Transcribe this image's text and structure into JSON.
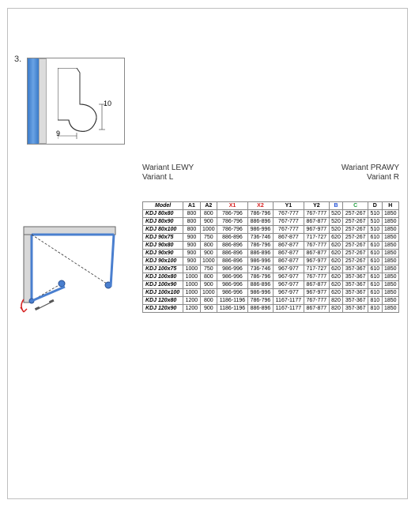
{
  "step_number": "3.",
  "profile": {
    "dim_horizontal": "9",
    "dim_vertical": "10"
  },
  "variant_left": {
    "line1": "Wariant LEWY",
    "line2": "Variant L"
  },
  "variant_right": {
    "line1": "Wariant PRAWY",
    "line2": "Variant R"
  },
  "table": {
    "columns": [
      {
        "label": "Model",
        "class": "model-h"
      },
      {
        "label": "A1"
      },
      {
        "label": "A2"
      },
      {
        "label": "X1",
        "class": "red"
      },
      {
        "label": "X2",
        "class": "red"
      },
      {
        "label": "Y1"
      },
      {
        "label": "Y2"
      },
      {
        "label": "B",
        "class": "blue"
      },
      {
        "label": "C",
        "class": "green"
      },
      {
        "label": "D"
      },
      {
        "label": "H"
      }
    ],
    "rows": [
      [
        "KDJ 80x80",
        "800",
        "800",
        "786-796",
        "786-796",
        "767-777",
        "767-777",
        "520",
        "257-267",
        "510",
        "1850"
      ],
      [
        "KDJ 80x90",
        "800",
        "900",
        "786-796",
        "886-896",
        "767-777",
        "867-877",
        "520",
        "257-267",
        "510",
        "1850"
      ],
      [
        "KDJ 80x100",
        "800",
        "1000",
        "786-796",
        "986-996",
        "767-777",
        "967-977",
        "520",
        "257-267",
        "510",
        "1850"
      ],
      [
        "KDJ 90x75",
        "900",
        "750",
        "886-896",
        "736-746",
        "867-877",
        "717-727",
        "620",
        "257-267",
        "610",
        "1850"
      ],
      [
        "KDJ 90x80",
        "900",
        "800",
        "886-896",
        "786-796",
        "867-877",
        "767-777",
        "620",
        "257-267",
        "610",
        "1850"
      ],
      [
        "KDJ 90x90",
        "900",
        "900",
        "886-896",
        "886-896",
        "867-877",
        "867-877",
        "620",
        "257-267",
        "610",
        "1850"
      ],
      [
        "KDJ 90x100",
        "900",
        "1000",
        "886-896",
        "986-996",
        "867-877",
        "967-977",
        "620",
        "257-267",
        "610",
        "1850"
      ],
      [
        "KDJ 100x75",
        "1000",
        "750",
        "986-996",
        "736-746",
        "967-977",
        "717-727",
        "620",
        "357-367",
        "610",
        "1850"
      ],
      [
        "KDJ 100x80",
        "1000",
        "800",
        "986-996",
        "786-796",
        "967-977",
        "767-777",
        "620",
        "357-367",
        "610",
        "1850"
      ],
      [
        "KDJ 100x90",
        "1000",
        "900",
        "986-996",
        "886-896",
        "967-977",
        "867-877",
        "620",
        "357-367",
        "610",
        "1850"
      ],
      [
        "KDJ 100x100",
        "1000",
        "1000",
        "986-996",
        "986-996",
        "967-977",
        "967-977",
        "620",
        "357-367",
        "610",
        "1850"
      ],
      [
        "KDJ 120x80",
        "1200",
        "800",
        "1186-1196",
        "786-796",
        "1167-1177",
        "767-777",
        "820",
        "357-367",
        "810",
        "1850"
      ],
      [
        "KDJ 120x90",
        "1200",
        "900",
        "1186-1196",
        "886-896",
        "1167-1177",
        "867-877",
        "820",
        "357-367",
        "810",
        "1850"
      ]
    ]
  },
  "colors": {
    "border": "#888888",
    "red": "#d62020",
    "blue": "#2050d6",
    "green": "#20a040",
    "profile_blue": "#3a7ac8",
    "door_blue": "#4a7fcf",
    "arrow_red": "#d62020"
  }
}
